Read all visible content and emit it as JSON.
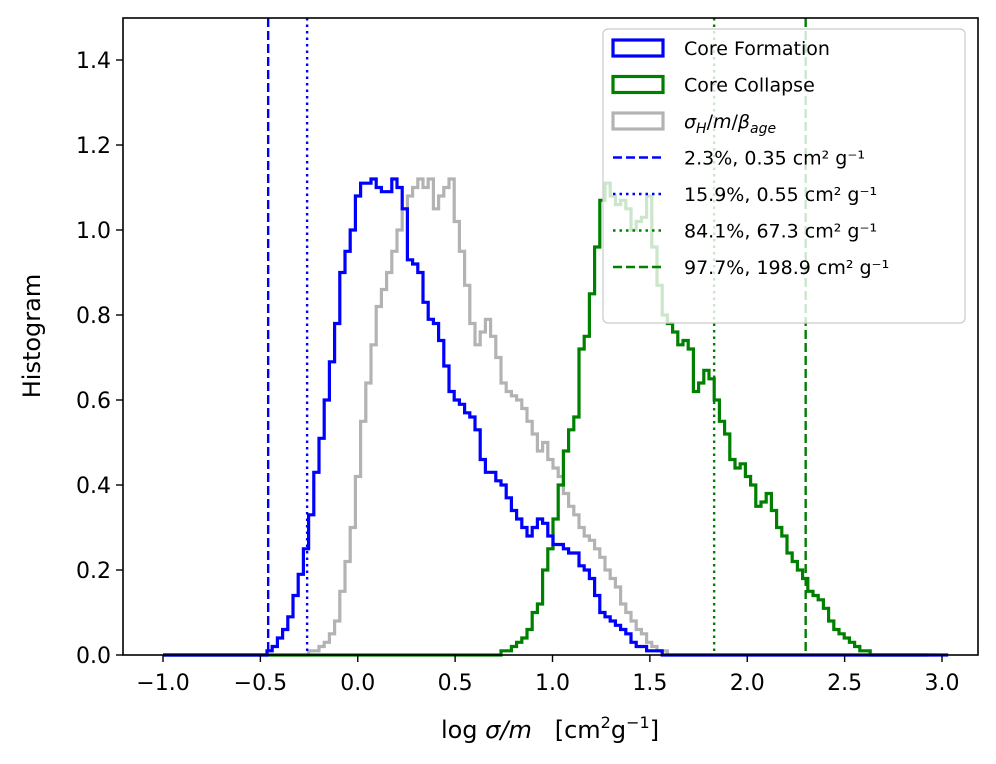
{
  "chart_data": {
    "type": "histogram",
    "xlabel": "log σ/m   [cm²g⁻¹]",
    "ylabel": "Histogram",
    "xlim": [
      -1.2,
      3.1
    ],
    "ylim": [
      0.0,
      1.5
    ],
    "xticks": [
      -1.0,
      -0.5,
      0.0,
      0.5,
      1.0,
      1.5,
      2.0,
      2.5,
      3.0
    ],
    "xtick_labels": [
      "−1.0",
      "−0.5",
      "0.0",
      "0.5",
      "1.0",
      "1.5",
      "2.0",
      "2.5",
      "3.0"
    ],
    "yticks": [
      0.0,
      0.2,
      0.4,
      0.6,
      0.8,
      1.0,
      1.2,
      1.4
    ],
    "ytick_labels": [
      "0.0",
      "0.2",
      "0.4",
      "0.6",
      "0.8",
      "1.0",
      "1.2",
      "1.4"
    ],
    "bins": {
      "start": -1.0,
      "width": 0.0267
    },
    "series": [
      {
        "name": "Core Formation",
        "color": "#0000ff",
        "values": [
          0,
          0,
          0,
          0,
          0,
          0,
          0,
          0,
          0,
          0,
          0,
          0,
          0,
          0,
          0,
          0,
          0,
          0,
          0,
          0,
          0.01,
          0.02,
          0.04,
          0.06,
          0.09,
          0.14,
          0.19,
          0.25,
          0.33,
          0.43,
          0.51,
          0.6,
          0.69,
          0.78,
          0.9,
          0.95,
          1.0,
          1.08,
          1.11,
          1.11,
          1.12,
          1.1,
          1.09,
          1.09,
          1.12,
          1.1,
          1.05,
          0.93,
          0.92,
          0.9,
          0.83,
          0.79,
          0.78,
          0.74,
          0.68,
          0.62,
          0.6,
          0.59,
          0.57,
          0.56,
          0.53,
          0.46,
          0.43,
          0.43,
          0.41,
          0.4,
          0.37,
          0.34,
          0.32,
          0.3,
          0.28,
          0.3,
          0.32,
          0.31,
          0.28,
          0.26,
          0.26,
          0.25,
          0.24,
          0.24,
          0.21,
          0.2,
          0.18,
          0.14,
          0.1,
          0.09,
          0.08,
          0.07,
          0.06,
          0.05,
          0.03,
          0.02,
          0.02,
          0.01,
          0.01,
          0.01,
          0,
          0,
          0,
          0,
          0,
          0,
          0,
          0,
          0,
          0,
          0,
          0,
          0,
          0,
          0,
          0,
          0,
          0,
          0,
          0,
          0,
          0,
          0,
          0,
          0,
          0,
          0,
          0,
          0,
          0,
          0,
          0,
          0,
          0,
          0,
          0,
          0,
          0,
          0,
          0,
          0,
          0,
          0,
          0,
          0,
          0,
          0,
          0,
          0,
          0,
          0,
          0,
          0,
          0,
          0
        ]
      },
      {
        "name": "Core Collapse",
        "color": "#008000",
        "values": [
          0,
          0,
          0,
          0,
          0,
          0,
          0,
          0,
          0,
          0,
          0,
          0,
          0,
          0,
          0,
          0,
          0,
          0,
          0,
          0,
          0,
          0,
          0,
          0,
          0,
          0,
          0,
          0,
          0,
          0,
          0,
          0,
          0,
          0,
          0,
          0,
          0,
          0,
          0,
          0,
          0,
          0,
          0,
          0,
          0,
          0,
          0,
          0,
          0,
          0,
          0,
          0,
          0,
          0,
          0,
          0,
          0,
          0,
          0,
          0,
          0,
          0,
          0,
          0,
          0,
          0.01,
          0.01,
          0.02,
          0.03,
          0.04,
          0.06,
          0.1,
          0.12,
          0.2,
          0.25,
          0.32,
          0.4,
          0.48,
          0.53,
          0.56,
          0.72,
          0.75,
          0.85,
          0.96,
          1.07,
          1.11,
          1.08,
          1.06,
          1.07,
          1.05,
          1.0,
          1.02,
          1.03,
          1.08,
          0.96,
          0.87,
          0.8,
          0.78,
          0.76,
          0.73,
          0.74,
          0.72,
          0.62,
          0.64,
          0.67,
          0.65,
          0.6,
          0.55,
          0.52,
          0.46,
          0.44,
          0.45,
          0.42,
          0.4,
          0.35,
          0.36,
          0.38,
          0.34,
          0.3,
          0.28,
          0.24,
          0.22,
          0.2,
          0.18,
          0.15,
          0.14,
          0.13,
          0.11,
          0.08,
          0.06,
          0.05,
          0.04,
          0.03,
          0.02,
          0.01,
          0.01,
          0,
          0,
          0,
          0,
          0,
          0,
          0,
          0,
          0,
          0,
          0
        ]
      },
      {
        "name": "σ_H/m/β_age",
        "color": "#b3b3b3",
        "values": [
          0,
          0,
          0,
          0,
          0,
          0,
          0,
          0,
          0,
          0,
          0,
          0,
          0,
          0,
          0,
          0,
          0,
          0,
          0,
          0,
          0,
          0,
          0,
          0,
          0,
          0,
          0,
          0,
          0.01,
          0.01,
          0.02,
          0.03,
          0.05,
          0.08,
          0.15,
          0.22,
          0.3,
          0.42,
          0.55,
          0.64,
          0.73,
          0.82,
          0.86,
          0.9,
          0.95,
          1.0,
          1.05,
          1.08,
          1.1,
          1.12,
          1.1,
          1.12,
          1.05,
          1.08,
          1.1,
          1.12,
          1.02,
          0.95,
          0.87,
          0.78,
          0.73,
          0.76,
          0.79,
          0.75,
          0.7,
          0.64,
          0.62,
          0.61,
          0.6,
          0.58,
          0.55,
          0.52,
          0.48,
          0.5,
          0.46,
          0.44,
          0.42,
          0.38,
          0.35,
          0.33,
          0.3,
          0.28,
          0.27,
          0.25,
          0.23,
          0.2,
          0.18,
          0.16,
          0.12,
          0.1,
          0.08,
          0.06,
          0.05,
          0.03,
          0.02,
          0.01,
          0.01,
          0,
          0,
          0,
          0,
          0,
          0,
          0,
          0,
          0,
          0,
          0,
          0,
          0,
          0,
          0,
          0,
          0,
          0,
          0,
          0,
          0,
          0,
          0,
          0,
          0,
          0,
          0,
          0,
          0,
          0,
          0,
          0,
          0,
          0,
          0,
          0,
          0,
          0,
          0,
          0,
          0,
          0,
          0,
          0,
          0,
          0,
          0,
          0,
          0,
          0,
          0,
          0
        ]
      }
    ],
    "vlines": [
      {
        "x": -0.46,
        "color": "#0000ff",
        "style": "dashed",
        "label": "2.3%, 0.35 cm² g⁻¹"
      },
      {
        "x": -0.26,
        "color": "#0000ff",
        "style": "dotted",
        "label": "15.9%, 0.55 cm² g⁻¹"
      },
      {
        "x": 1.83,
        "color": "#008000",
        "style": "dotted",
        "label": "84.1%, 67.3 cm² g⁻¹"
      },
      {
        "x": 2.3,
        "color": "#008000",
        "style": "dashed",
        "label": "97.7%, 198.9 cm² g⁻¹"
      }
    ],
    "legend": {
      "placement": "upper-right",
      "entries": [
        {
          "label": "Core Formation",
          "kind": "patch",
          "color": "#0000ff"
        },
        {
          "label": "Core Collapse",
          "kind": "patch",
          "color": "#008000"
        },
        {
          "label": "σH/m/βage",
          "kind": "patch",
          "color": "#b3b3b3"
        },
        {
          "label": "2.3%, 0.35 cm² g⁻¹",
          "kind": "line",
          "style": "dashed",
          "color": "#0000ff"
        },
        {
          "label": "15.9%, 0.55 cm² g⁻¹",
          "kind": "line",
          "style": "dotted",
          "color": "#0000ff"
        },
        {
          "label": "84.1%, 67.3 cm² g⁻¹",
          "kind": "line",
          "style": "dotted",
          "color": "#008000"
        },
        {
          "label": "97.7%, 198.9 cm² g⁻¹",
          "kind": "line",
          "style": "dashed",
          "color": "#008000"
        }
      ]
    },
    "grid": false
  }
}
